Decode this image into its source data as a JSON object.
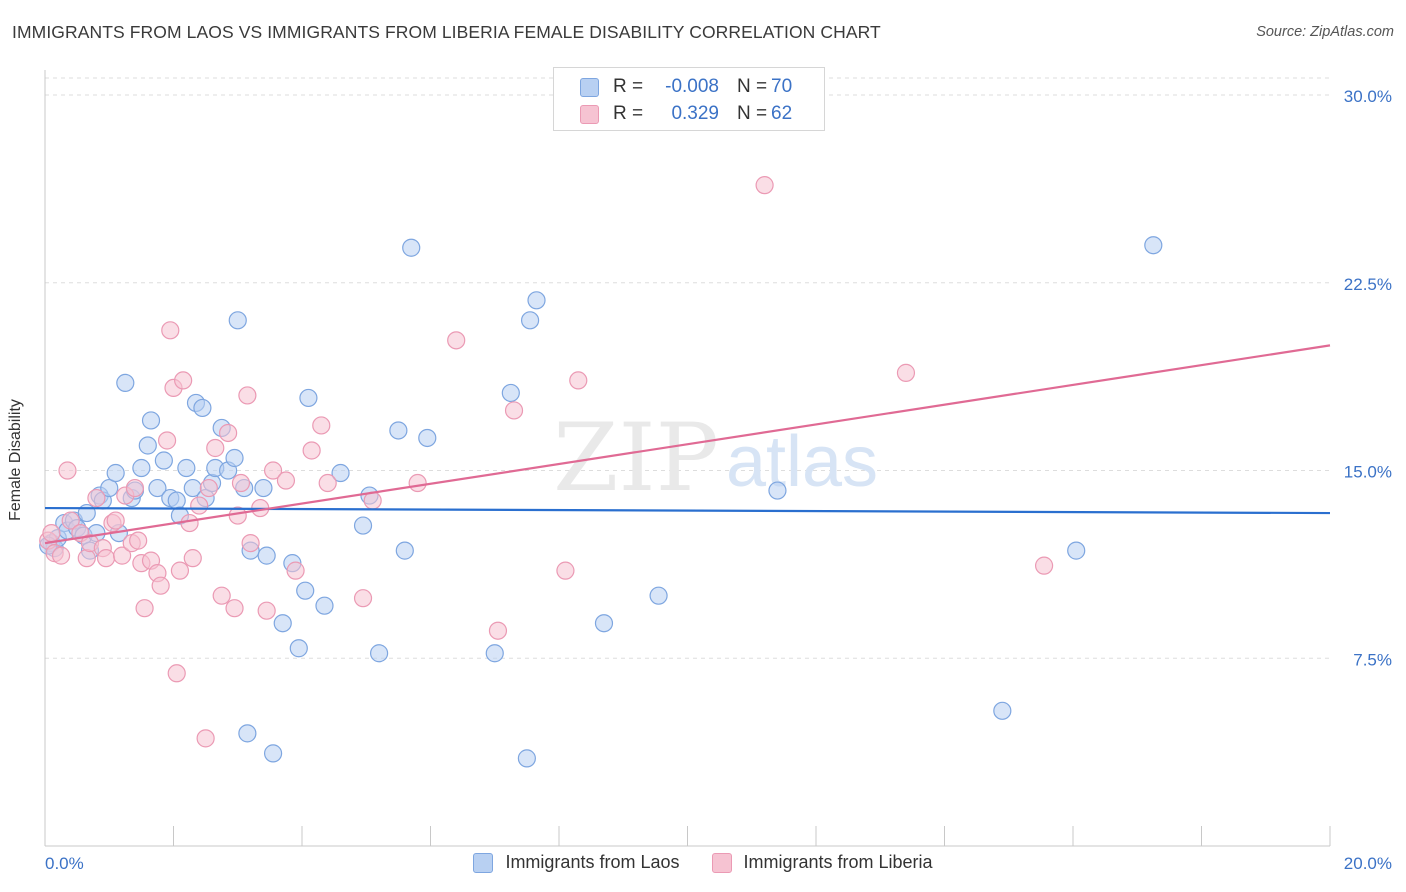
{
  "title": "IMMIGRANTS FROM LAOS VS IMMIGRANTS FROM LIBERIA FEMALE DISABILITY CORRELATION CHART",
  "source": "Source: ZipAtlas.com",
  "watermark": {
    "zip": "ZIP",
    "atlas": "atlas"
  },
  "legend": {
    "r_label": "R =",
    "n_label": "N =",
    "laos": {
      "r": "-0.008",
      "n": "70"
    },
    "liberia": {
      "r": "0.329",
      "n": "62"
    }
  },
  "colors": {
    "laos_fill": "#b8d0f2",
    "laos_stroke": "#7ea6e0",
    "laos_line": "#2a6fcf",
    "liberia_fill": "#f6c3d2",
    "liberia_stroke": "#eb9ab4",
    "liberia_line": "#e06a94",
    "axis_text": "#3b72c6",
    "grid": "#dddddd"
  },
  "chart_data": {
    "type": "scatter",
    "title": "IMMIGRANTS FROM LAOS VS IMMIGRANTS FROM LIBERIA FEMALE DISABILITY CORRELATION CHART",
    "xlabel": "",
    "ylabel": "Female Disability",
    "xlim": [
      0,
      20
    ],
    "ylim": [
      0,
      31
    ],
    "x_tick_labels": [
      "0.0%",
      "20.0%"
    ],
    "y_ticks": [
      7.5,
      15.0,
      22.5,
      30.0
    ],
    "y_tick_labels": [
      "7.5%",
      "15.0%",
      "22.5%",
      "30.0%"
    ],
    "grid": true,
    "legend_position": "top-center",
    "series": [
      {
        "name": "Immigrants from Laos",
        "trend": {
          "x": [
            0,
            20
          ],
          "y": [
            13.5,
            13.3
          ]
        },
        "points": [
          [
            0.1,
            12.1
          ],
          [
            0.15,
            11.9
          ],
          [
            0.2,
            12.3
          ],
          [
            0.3,
            12.9
          ],
          [
            0.35,
            12.6
          ],
          [
            0.45,
            13.0
          ],
          [
            0.5,
            12.7
          ],
          [
            0.6,
            12.4
          ],
          [
            0.65,
            13.3
          ],
          [
            0.7,
            11.8
          ],
          [
            0.8,
            12.5
          ],
          [
            0.85,
            14.0
          ],
          [
            0.9,
            13.8
          ],
          [
            1.0,
            14.3
          ],
          [
            1.1,
            14.9
          ],
          [
            1.15,
            12.5
          ],
          [
            1.25,
            18.5
          ],
          [
            1.35,
            13.9
          ],
          [
            1.4,
            14.2
          ],
          [
            1.5,
            15.1
          ],
          [
            1.6,
            16.0
          ],
          [
            1.65,
            17.0
          ],
          [
            1.75,
            14.3
          ],
          [
            1.85,
            15.4
          ],
          [
            1.95,
            13.9
          ],
          [
            2.05,
            13.8
          ],
          [
            2.1,
            13.2
          ],
          [
            2.2,
            15.1
          ],
          [
            2.3,
            14.3
          ],
          [
            2.35,
            17.7
          ],
          [
            2.45,
            17.5
          ],
          [
            2.5,
            13.9
          ],
          [
            2.6,
            14.5
          ],
          [
            2.65,
            15.1
          ],
          [
            2.75,
            16.7
          ],
          [
            2.85,
            15.0
          ],
          [
            2.95,
            15.5
          ],
          [
            3.0,
            21.0
          ],
          [
            3.1,
            14.3
          ],
          [
            3.15,
            4.5
          ],
          [
            3.2,
            11.8
          ],
          [
            3.4,
            14.3
          ],
          [
            3.45,
            11.6
          ],
          [
            3.55,
            3.7
          ],
          [
            3.7,
            8.9
          ],
          [
            3.85,
            11.3
          ],
          [
            3.95,
            7.9
          ],
          [
            4.05,
            10.2
          ],
          [
            4.1,
            17.9
          ],
          [
            4.35,
            9.6
          ],
          [
            4.6,
            14.9
          ],
          [
            4.95,
            12.8
          ],
          [
            5.05,
            14.0
          ],
          [
            5.2,
            7.7
          ],
          [
            5.5,
            16.6
          ],
          [
            5.6,
            11.8
          ],
          [
            5.7,
            23.9
          ],
          [
            5.95,
            16.3
          ],
          [
            7.0,
            7.7
          ],
          [
            7.25,
            18.1
          ],
          [
            7.5,
            3.5
          ],
          [
            7.55,
            21.0
          ],
          [
            7.65,
            21.8
          ],
          [
            8.7,
            8.9
          ],
          [
            9.55,
            10.0
          ],
          [
            11.4,
            14.2
          ],
          [
            14.9,
            5.4
          ],
          [
            16.05,
            11.8
          ],
          [
            17.25,
            24.0
          ],
          [
            0.05,
            12.0
          ]
        ]
      },
      {
        "name": "Immigrants from Liberia",
        "trend": {
          "x": [
            0,
            20
          ],
          "y": [
            12.1,
            20.0
          ]
        },
        "points": [
          [
            0.05,
            12.2
          ],
          [
            0.15,
            11.7
          ],
          [
            0.25,
            11.6
          ],
          [
            0.35,
            15.0
          ],
          [
            0.4,
            13.0
          ],
          [
            0.55,
            12.5
          ],
          [
            0.65,
            11.5
          ],
          [
            0.7,
            12.1
          ],
          [
            0.8,
            13.9
          ],
          [
            0.9,
            11.9
          ],
          [
            0.95,
            11.5
          ],
          [
            1.05,
            12.9
          ],
          [
            1.1,
            13.0
          ],
          [
            1.2,
            11.6
          ],
          [
            1.25,
            14.0
          ],
          [
            1.35,
            12.1
          ],
          [
            1.4,
            14.3
          ],
          [
            1.45,
            12.2
          ],
          [
            1.5,
            11.3
          ],
          [
            1.55,
            9.5
          ],
          [
            1.65,
            11.4
          ],
          [
            1.75,
            10.9
          ],
          [
            1.8,
            10.4
          ],
          [
            1.9,
            16.2
          ],
          [
            1.95,
            20.6
          ],
          [
            2.0,
            18.3
          ],
          [
            2.05,
            6.9
          ],
          [
            2.1,
            11.0
          ],
          [
            2.15,
            18.6
          ],
          [
            2.25,
            12.9
          ],
          [
            2.3,
            11.5
          ],
          [
            2.4,
            13.6
          ],
          [
            2.5,
            4.3
          ],
          [
            2.55,
            14.3
          ],
          [
            2.65,
            15.9
          ],
          [
            2.75,
            10.0
          ],
          [
            2.85,
            16.5
          ],
          [
            2.95,
            9.5
          ],
          [
            3.0,
            13.2
          ],
          [
            3.05,
            14.5
          ],
          [
            3.15,
            18.0
          ],
          [
            3.2,
            12.1
          ],
          [
            3.35,
            13.5
          ],
          [
            3.45,
            9.4
          ],
          [
            3.55,
            15.0
          ],
          [
            3.75,
            14.6
          ],
          [
            3.9,
            11.0
          ],
          [
            4.15,
            15.8
          ],
          [
            4.3,
            16.8
          ],
          [
            4.4,
            14.5
          ],
          [
            4.95,
            9.9
          ],
          [
            5.1,
            13.8
          ],
          [
            5.8,
            14.5
          ],
          [
            6.4,
            20.2
          ],
          [
            7.05,
            8.6
          ],
          [
            7.3,
            17.4
          ],
          [
            8.1,
            11.0
          ],
          [
            8.3,
            18.6
          ],
          [
            11.2,
            26.4
          ],
          [
            13.4,
            18.9
          ],
          [
            15.55,
            11.2
          ],
          [
            0.1,
            12.5
          ]
        ]
      }
    ]
  },
  "bottom_legend": {
    "laos": "Immigrants from Laos",
    "liberia": "Immigrants from Liberia"
  }
}
